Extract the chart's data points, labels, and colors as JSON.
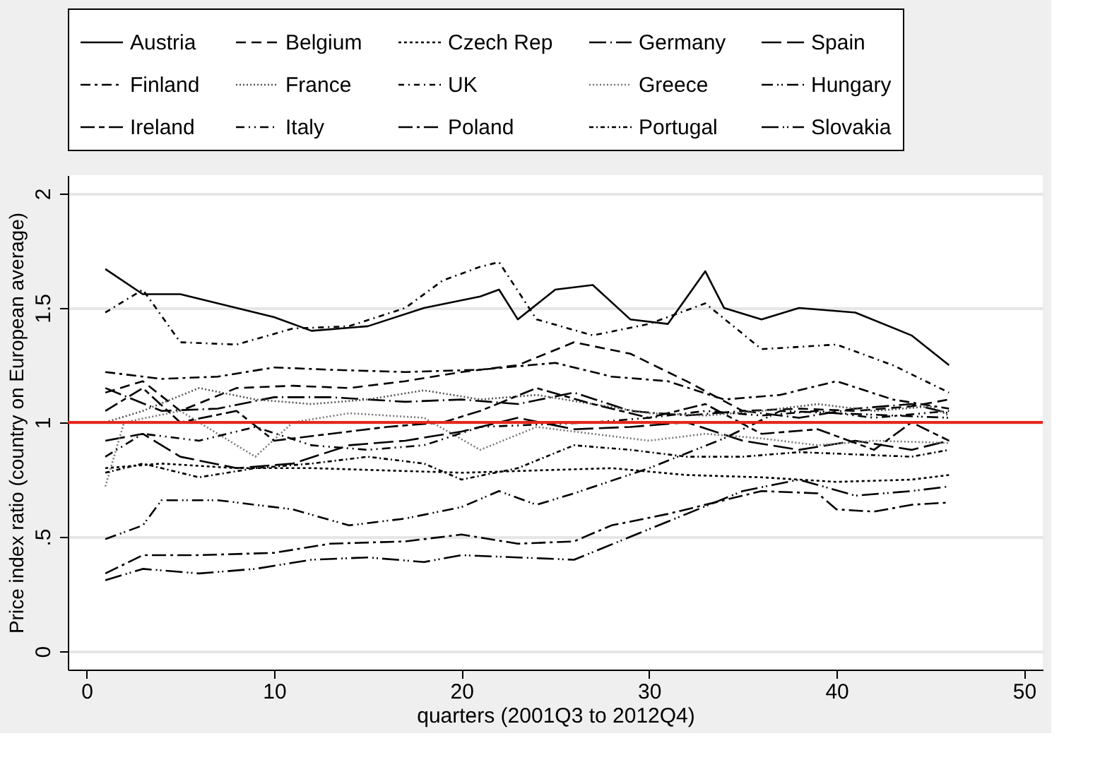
{
  "chart_data": {
    "type": "line",
    "xlabel": "quarters (2001Q3 to 2012Q4)",
    "ylabel": "Price index ratio (country on European average)",
    "xlim": [
      -1,
      51
    ],
    "xticks": [
      0,
      10,
      20,
      30,
      40,
      50
    ],
    "ylim": [
      -0.08,
      2.08
    ],
    "yticks": [
      0,
      {
        "value": 0.5,
        "label": ".5"
      },
      1,
      1.5,
      2
    ],
    "grid": "y",
    "legend": "top",
    "marker": "none",
    "ref_lines": [
      {
        "axis": "y",
        "value": 1,
        "color": "#e8261c"
      }
    ],
    "series": [
      {
        "name": "Austria",
        "color": "#000000",
        "line_style": "solid",
        "x": [
          1,
          3,
          5,
          8,
          10,
          12,
          15,
          18,
          21,
          22,
          23,
          25,
          27,
          29,
          31,
          33,
          34,
          36,
          38,
          41,
          44,
          46
        ],
        "values": [
          1.67,
          1.56,
          1.56,
          1.5,
          1.46,
          1.4,
          1.42,
          1.5,
          1.55,
          1.58,
          1.45,
          1.58,
          1.6,
          1.45,
          1.43,
          1.66,
          1.5,
          1.45,
          1.5,
          1.48,
          1.38,
          1.25
        ]
      },
      {
        "name": "Belgium",
        "color": "#000000",
        "line_style": "dashed",
        "x": [
          1,
          3,
          5,
          8,
          11,
          14,
          17,
          20,
          23,
          26,
          29,
          32,
          35,
          38,
          41,
          44,
          46
        ],
        "values": [
          1.13,
          1.18,
          1.05,
          1.15,
          1.16,
          1.15,
          1.18,
          1.22,
          1.25,
          1.35,
          1.3,
          1.18,
          1.05,
          1.06,
          1.05,
          1.07,
          1.1
        ]
      },
      {
        "name": "Czech Rep",
        "color": "#000000",
        "line_style": "dotted",
        "x": [
          1,
          4,
          8,
          12,
          16,
          20,
          24,
          28,
          32,
          36,
          40,
          44,
          46
        ],
        "values": [
          0.8,
          0.82,
          0.8,
          0.8,
          0.79,
          0.78,
          0.79,
          0.8,
          0.77,
          0.76,
          0.74,
          0.75,
          0.77
        ]
      },
      {
        "name": "Germany",
        "color": "#000000",
        "line_style": "longdashdot",
        "x": [
          1,
          4,
          7,
          10,
          13,
          17,
          20,
          23,
          26,
          29,
          32,
          35,
          38,
          41,
          44,
          46
        ],
        "values": [
          1.15,
          1.05,
          1.06,
          1.11,
          1.11,
          1.09,
          1.1,
          1.08,
          1.13,
          1.05,
          1.03,
          1.05,
          1.02,
          1.06,
          1.08,
          1.04
        ]
      },
      {
        "name": "Spain",
        "color": "#000000",
        "line_style": "longdash",
        "x": [
          1,
          3,
          5,
          8,
          11,
          14,
          17,
          20,
          23,
          26,
          29,
          32,
          35,
          38,
          41,
          44,
          46
        ],
        "values": [
          0.92,
          0.95,
          0.85,
          0.8,
          0.82,
          0.9,
          0.92,
          0.96,
          1.02,
          0.97,
          0.98,
          1.0,
          0.92,
          0.88,
          0.92,
          0.88,
          0.92
        ]
      },
      {
        "name": "Finland",
        "color": "#000000",
        "line_style": "dashdot",
        "x": [
          1,
          4,
          7,
          10,
          13,
          17,
          21,
          25,
          28,
          31,
          34,
          37,
          40,
          43,
          46
        ],
        "values": [
          1.22,
          1.19,
          1.2,
          1.24,
          1.23,
          1.22,
          1.23,
          1.26,
          1.2,
          1.18,
          1.1,
          1.12,
          1.18,
          1.1,
          1.06
        ]
      },
      {
        "name": "France",
        "color": "#555555",
        "line_style": "finedot",
        "x": [
          1,
          3,
          6,
          9,
          12,
          15,
          18,
          21,
          24,
          27,
          30,
          33,
          36,
          39,
          42,
          45,
          46
        ],
        "values": [
          1.0,
          1.05,
          1.15,
          1.1,
          1.08,
          1.1,
          1.14,
          1.1,
          1.12,
          1.08,
          1.04,
          1.03,
          1.05,
          1.08,
          1.05,
          1.07,
          1.03
        ]
      },
      {
        "name": "UK",
        "color": "#000000",
        "line_style": "dashdotshort",
        "x": [
          1,
          3,
          5,
          8,
          11,
          14,
          17,
          19,
          21,
          22,
          24,
          27,
          30,
          33,
          36,
          40,
          43,
          46
        ],
        "values": [
          1.48,
          1.58,
          1.35,
          1.34,
          1.41,
          1.42,
          1.5,
          1.62,
          1.68,
          1.7,
          1.45,
          1.38,
          1.43,
          1.52,
          1.32,
          1.34,
          1.25,
          1.13
        ]
      },
      {
        "name": "Greece",
        "color": "#777777",
        "line_style": "finedot",
        "x": [
          1,
          2,
          5,
          9,
          11,
          14,
          18,
          21,
          24,
          27,
          30,
          33,
          36,
          39,
          42,
          46
        ],
        "values": [
          0.72,
          1.0,
          1.05,
          0.85,
          1.0,
          1.04,
          1.02,
          0.88,
          0.98,
          0.95,
          0.92,
          0.95,
          0.93,
          0.9,
          0.92,
          0.91
        ]
      },
      {
        "name": "Hungary",
        "color": "#000000",
        "line_style": "dashdotdot",
        "x": [
          1,
          3,
          4,
          7,
          11,
          14,
          17,
          20,
          22,
          24,
          26,
          30,
          34,
          37,
          40,
          43,
          46
        ],
        "values": [
          0.49,
          0.55,
          0.66,
          0.66,
          0.62,
          0.55,
          0.58,
          0.63,
          0.7,
          0.64,
          0.69,
          0.8,
          0.93,
          1.05,
          1.04,
          1.03,
          1.02
        ]
      },
      {
        "name": "Ireland",
        "color": "#000000",
        "line_style": "longdashdash",
        "x": [
          1,
          3,
          5,
          8,
          10,
          13,
          16,
          19,
          21,
          24,
          27,
          30,
          33,
          36,
          39,
          42,
          44,
          46
        ],
        "values": [
          1.05,
          1.15,
          1.0,
          1.05,
          0.92,
          0.95,
          0.98,
          1.0,
          1.05,
          1.15,
          1.08,
          1.02,
          1.08,
          0.95,
          0.97,
          0.88,
          1.0,
          0.92
        ]
      },
      {
        "name": "Italy",
        "color": "#000000",
        "line_style": "dashdotdotlight",
        "x": [
          1,
          3,
          6,
          9,
          12,
          15,
          18,
          21,
          24,
          27,
          30,
          33,
          36,
          39,
          42,
          46
        ],
        "values": [
          0.85,
          0.95,
          0.92,
          0.98,
          0.9,
          0.88,
          0.9,
          0.98,
          0.99,
          1.0,
          1.02,
          1.05,
          1.03,
          1.05,
          1.02,
          1.05
        ]
      },
      {
        "name": "Poland",
        "color": "#000000",
        "line_style": "longdashgap",
        "x": [
          1,
          3,
          6,
          10,
          13,
          17,
          20,
          23,
          26,
          28,
          31,
          34,
          36,
          39,
          40,
          42,
          44,
          46
        ],
        "values": [
          0.34,
          0.42,
          0.42,
          0.43,
          0.47,
          0.48,
          0.51,
          0.47,
          0.48,
          0.55,
          0.6,
          0.66,
          0.7,
          0.69,
          0.62,
          0.61,
          0.64,
          0.65
        ]
      },
      {
        "name": "Portugal",
        "color": "#000000",
        "line_style": "dotdashdot",
        "x": [
          1,
          3,
          6,
          9,
          12,
          15,
          18,
          20,
          23,
          26,
          29,
          32,
          35,
          38,
          41,
          44,
          46
        ],
        "values": [
          0.78,
          0.82,
          0.76,
          0.8,
          0.82,
          0.85,
          0.82,
          0.75,
          0.8,
          0.9,
          0.88,
          0.85,
          0.85,
          0.87,
          0.86,
          0.85,
          0.88
        ]
      },
      {
        "name": "Slovakia",
        "color": "#000000",
        "line_style": "longdashdotdot",
        "x": [
          1,
          3,
          6,
          9,
          12,
          15,
          18,
          20,
          23,
          26,
          29,
          32,
          35,
          38,
          41,
          44,
          46
        ],
        "values": [
          0.31,
          0.36,
          0.34,
          0.36,
          0.4,
          0.41,
          0.39,
          0.42,
          0.41,
          0.4,
          0.5,
          0.6,
          0.7,
          0.75,
          0.68,
          0.7,
          0.72
        ]
      }
    ]
  }
}
